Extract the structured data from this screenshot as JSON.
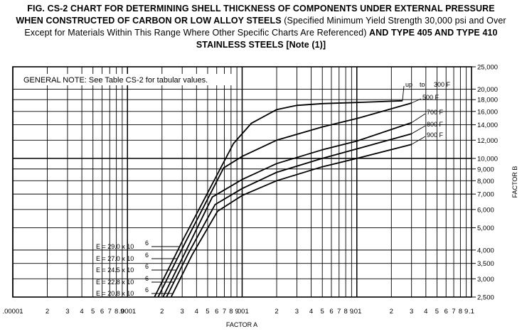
{
  "header": {
    "line1": "FIG. CS-2   CHART FOR DETERMINING SHELL THICKNESS OF COMPONENTS UNDER EXTERNAL PRESSURE",
    "line2_bold": "WHEN CONSTRUCTED OF CARBON OR LOW ALLOY STEELS",
    "line2_normal": " (Specified Minimum Yield Strength 30,000 psi and Over",
    "line3_normal": "Except for Materials Within This Range Where Other Specific Charts Are Referenced) ",
    "line3_bold": "AND TYPE 405 AND TYPE 410",
    "line4": "STAINLESS STEELS [Note (1)]"
  },
  "chart_data": {
    "type": "line",
    "xscale": "log",
    "yscale": "log",
    "xlabel": "FACTOR A",
    "ylabel": "FACTOR B",
    "xlim": [
      1e-05,
      0.1
    ],
    "ylim": [
      2500,
      25000
    ],
    "note": "GENERAL NOTE: See Table CS-2 for tabular values.",
    "x_tick_labels": [
      {
        "v": 1e-05,
        "t": ".00001"
      },
      {
        "v": 2e-05,
        "t": "2"
      },
      {
        "v": 3e-05,
        "t": "3"
      },
      {
        "v": 4e-05,
        "t": "4"
      },
      {
        "v": 5e-05,
        "t": "5"
      },
      {
        "v": 6e-05,
        "t": "6"
      },
      {
        "v": 7e-05,
        "t": "7"
      },
      {
        "v": 8e-05,
        "t": "8"
      },
      {
        "v": 9e-05,
        "t": "9"
      },
      {
        "v": 0.0001,
        "t": ".0001"
      },
      {
        "v": 0.0002,
        "t": "2"
      },
      {
        "v": 0.0003,
        "t": "3"
      },
      {
        "v": 0.0004,
        "t": "4"
      },
      {
        "v": 0.0005,
        "t": "5"
      },
      {
        "v": 0.0006,
        "t": "6"
      },
      {
        "v": 0.0007,
        "t": "7"
      },
      {
        "v": 0.0008,
        "t": "8"
      },
      {
        "v": 0.0009,
        "t": "9"
      },
      {
        "v": 0.001,
        "t": ".001"
      },
      {
        "v": 0.002,
        "t": "2"
      },
      {
        "v": 0.003,
        "t": "3"
      },
      {
        "v": 0.004,
        "t": "4"
      },
      {
        "v": 0.005,
        "t": "5"
      },
      {
        "v": 0.006,
        "t": "6"
      },
      {
        "v": 0.007,
        "t": "7"
      },
      {
        "v": 0.008,
        "t": "8"
      },
      {
        "v": 0.009,
        "t": "9"
      },
      {
        "v": 0.01,
        "t": ".01"
      },
      {
        "v": 0.02,
        "t": "2"
      },
      {
        "v": 0.03,
        "t": "3"
      },
      {
        "v": 0.04,
        "t": "4"
      },
      {
        "v": 0.05,
        "t": "5"
      },
      {
        "v": 0.06,
        "t": "6"
      },
      {
        "v": 0.07,
        "t": "7"
      },
      {
        "v": 0.08,
        "t": "8"
      },
      {
        "v": 0.09,
        "t": "9"
      },
      {
        "v": 0.1,
        "t": ".1"
      }
    ],
    "y_tick_labels": [
      {
        "v": 25000,
        "t": "25,000"
      },
      {
        "v": 20000,
        "t": "20,000"
      },
      {
        "v": 18000,
        "t": "18,000"
      },
      {
        "v": 16000,
        "t": "16,000"
      },
      {
        "v": 14000,
        "t": "14,000"
      },
      {
        "v": 12000,
        "t": "12,000"
      },
      {
        "v": 10000,
        "t": "10,000"
      },
      {
        "v": 9000,
        "t": "9,000"
      },
      {
        "v": 8000,
        "t": "8,000"
      },
      {
        "v": 7000,
        "t": "7,000"
      },
      {
        "v": 6000,
        "t": "6,000"
      },
      {
        "v": 5000,
        "t": "5,000"
      },
      {
        "v": 4000,
        "t": "4,000"
      },
      {
        "v": 3500,
        "t": "3,500"
      },
      {
        "v": 3000,
        "t": "3,000"
      },
      {
        "v": 2500,
        "t": "2,500"
      }
    ],
    "series": [
      {
        "name": "up to 300 F",
        "modulus": "E = 29.0 x 10",
        "points": [
          [
            0.000172,
            2500
          ],
          [
            0.000306,
            4450
          ],
          [
            0.00084,
            11600
          ],
          [
            0.0012,
            14200
          ],
          [
            0.002,
            16300
          ],
          [
            0.003,
            17000
          ],
          [
            0.005,
            17300
          ],
          [
            0.01,
            17500
          ],
          [
            0.025,
            17800
          ]
        ]
      },
      {
        "name": "500 F",
        "modulus": "E = 27.0 x 10",
        "points": [
          [
            0.000185,
            2500
          ],
          [
            0.000316,
            4270
          ],
          [
            0.00069,
            9100
          ],
          [
            0.001,
            10200
          ],
          [
            0.002,
            12000
          ],
          [
            0.005,
            13700
          ],
          [
            0.01,
            14900
          ],
          [
            0.03,
            17400
          ]
        ]
      },
      {
        "name": "700 F",
        "modulus": "E = 24.5 x 10",
        "points": [
          [
            0.000204,
            2500
          ],
          [
            0.000326,
            4000
          ],
          [
            0.00055,
            6800
          ],
          [
            0.001,
            8100
          ],
          [
            0.002,
            9500
          ],
          [
            0.005,
            10900
          ],
          [
            0.01,
            11900
          ],
          [
            0.03,
            14300
          ]
        ]
      },
      {
        "name": "800 F",
        "modulus": "E = 22.8 x 10",
        "points": [
          [
            0.000219,
            2500
          ],
          [
            0.000342,
            3900
          ],
          [
            0.00058,
            6300
          ],
          [
            0.001,
            7400
          ],
          [
            0.002,
            8700
          ],
          [
            0.005,
            10000
          ],
          [
            0.01,
            11000
          ],
          [
            0.03,
            12800
          ]
        ]
      },
      {
        "name": "900 F",
        "modulus": "E = 20.8 x 10",
        "points": [
          [
            0.00024,
            2500
          ],
          [
            0.000365,
            3800
          ],
          [
            0.00061,
            5900
          ],
          [
            0.001,
            6900
          ],
          [
            0.002,
            8000
          ],
          [
            0.005,
            9200
          ],
          [
            0.01,
            10000
          ],
          [
            0.03,
            11500
          ]
        ]
      }
    ],
    "curve_labels": [
      {
        "series": 0,
        "parts": [
          "up",
          "to",
          "300 F"
        ]
      },
      {
        "series": 1,
        "parts": [
          "500 F"
        ]
      },
      {
        "series": 2,
        "parts": [
          "700 F"
        ]
      },
      {
        "series": 3,
        "parts": [
          "800 F"
        ]
      },
      {
        "series": 4,
        "parts": [
          "900 F"
        ]
      }
    ],
    "modulus_exponent": "6"
  }
}
